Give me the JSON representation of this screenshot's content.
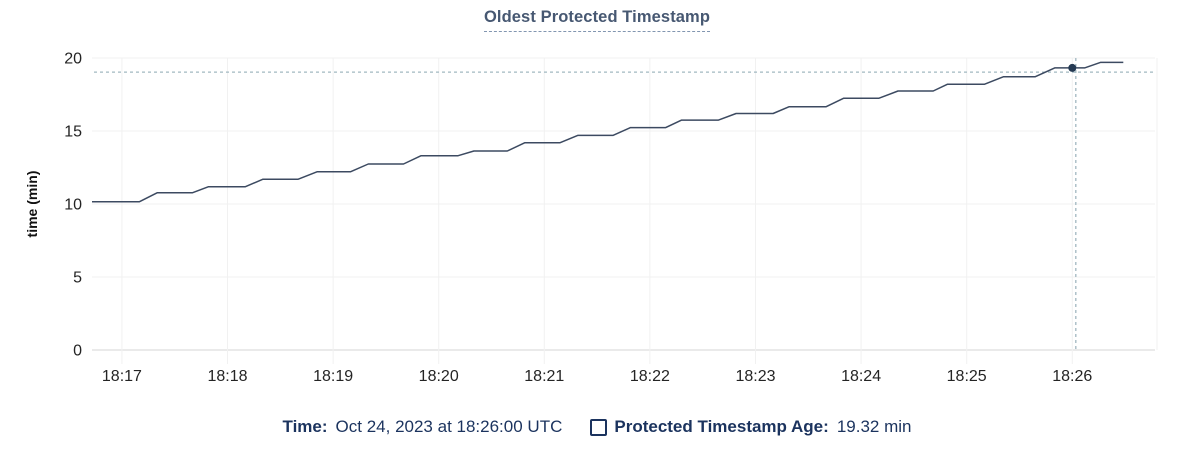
{
  "header": {
    "title": "Oldest Protected Timestamp"
  },
  "axes": {
    "y_title": "time (min)"
  },
  "legend": {
    "time_label": "Time:",
    "time_value": "Oct 24, 2023 at 18:26:00 UTC",
    "series_label": "Protected Timestamp Age:",
    "series_value": "19.32 min"
  },
  "colors": {
    "title": "#475872",
    "title_underline": "#8296b0",
    "axis_text": "#242424",
    "grid": "#f1f1f1",
    "axis_line": "#e4e4e4",
    "series": "#3c4a61",
    "dot": "#253a53",
    "crosshair": "#a2b8c1",
    "legend_text": "#1b335e"
  },
  "chart_data": {
    "type": "line",
    "title": "Oldest Protected Timestamp",
    "xlabel": "",
    "ylabel": "time (min)",
    "ylim": [
      0,
      20
    ],
    "yticks": [
      0,
      5,
      10,
      15,
      20
    ],
    "xticks": [
      "18:17",
      "18:18",
      "18:19",
      "18:20",
      "18:21",
      "18:22",
      "18:23",
      "18:24",
      "18:25",
      "18:26"
    ],
    "x_domain": [
      "18:16:43",
      "18:26:47"
    ],
    "grid": true,
    "legend_position": "bottom",
    "series": [
      {
        "name": "Protected Timestamp Age",
        "unit": "min",
        "points": [
          [
            "18:16:43",
            10.16
          ],
          [
            "18:17:10",
            10.16
          ],
          [
            "18:17:20",
            10.77
          ],
          [
            "18:17:40",
            10.77
          ],
          [
            "18:17:49",
            11.18
          ],
          [
            "18:18:10",
            11.18
          ],
          [
            "18:18:20",
            11.69
          ],
          [
            "18:18:40",
            11.69
          ],
          [
            "18:18:51",
            12.21
          ],
          [
            "18:19:10",
            12.21
          ],
          [
            "18:19:20",
            12.74
          ],
          [
            "18:19:40",
            12.74
          ],
          [
            "18:19:50",
            13.31
          ],
          [
            "18:20:11",
            13.31
          ],
          [
            "18:20:20",
            13.63
          ],
          [
            "18:20:39",
            13.63
          ],
          [
            "18:20:49",
            14.2
          ],
          [
            "18:21:09",
            14.2
          ],
          [
            "18:21:19",
            14.7
          ],
          [
            "18:21:39",
            14.7
          ],
          [
            "18:21:49",
            15.23
          ],
          [
            "18:22:09",
            15.23
          ],
          [
            "18:22:18",
            15.75
          ],
          [
            "18:22:39",
            15.75
          ],
          [
            "18:22:49",
            16.2
          ],
          [
            "18:23:10",
            16.2
          ],
          [
            "18:23:19",
            16.66
          ],
          [
            "18:23:40",
            16.66
          ],
          [
            "18:23:50",
            17.24
          ],
          [
            "18:24:10",
            17.24
          ],
          [
            "18:24:21",
            17.74
          ],
          [
            "18:24:41",
            17.74
          ],
          [
            "18:24:49",
            18.2
          ],
          [
            "18:25:10",
            18.2
          ],
          [
            "18:25:21",
            18.72
          ],
          [
            "18:25:39",
            18.72
          ],
          [
            "18:25:50",
            19.32
          ],
          [
            "18:26:07",
            19.32
          ],
          [
            "18:26:16",
            19.7
          ],
          [
            "18:26:29",
            19.7
          ]
        ]
      }
    ],
    "hover": {
      "point_time": "18:26:00",
      "point_value": 19.32,
      "cursor_time": "18:26:02",
      "cursor_value": 19.03
    }
  }
}
